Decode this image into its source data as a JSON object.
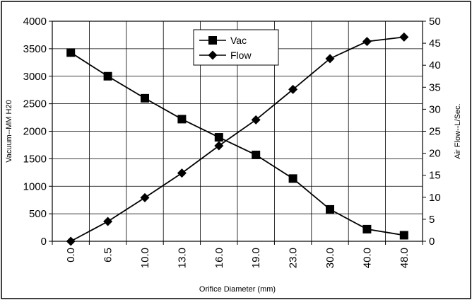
{
  "chart_data": {
    "type": "line",
    "categories": [
      "0.0",
      "6.5",
      "10.0",
      "13.0",
      "16.0",
      "19.0",
      "23.0",
      "30.0",
      "40.0",
      "48.0"
    ],
    "xlabel": "Orifice Diameter (mm)",
    "ylabel_left": "Vacuum--MM H20",
    "ylabel_right": "Air Flow--L/Sec.",
    "ylim_left": [
      0,
      4000
    ],
    "yticks_left": [
      0,
      500,
      1000,
      1500,
      2000,
      2500,
      3000,
      3500,
      4000
    ],
    "ylim_right": [
      0,
      50
    ],
    "yticks_right": [
      0,
      5,
      10,
      15,
      20,
      25,
      30,
      35,
      40,
      45,
      50
    ],
    "grid": true,
    "legend_position": "top-center",
    "series": [
      {
        "name": "Vac",
        "axis": "left",
        "marker": "square",
        "color": "#000000",
        "values": [
          3430,
          3000,
          2600,
          2220,
          1890,
          1570,
          1140,
          580,
          220,
          110
        ]
      },
      {
        "name": "Flow",
        "axis": "right",
        "marker": "diamond",
        "color": "#000000",
        "values": [
          0,
          4.5,
          9.9,
          15.5,
          21.7,
          27.6,
          34.5,
          41.5,
          45.4,
          46.4
        ]
      }
    ]
  }
}
